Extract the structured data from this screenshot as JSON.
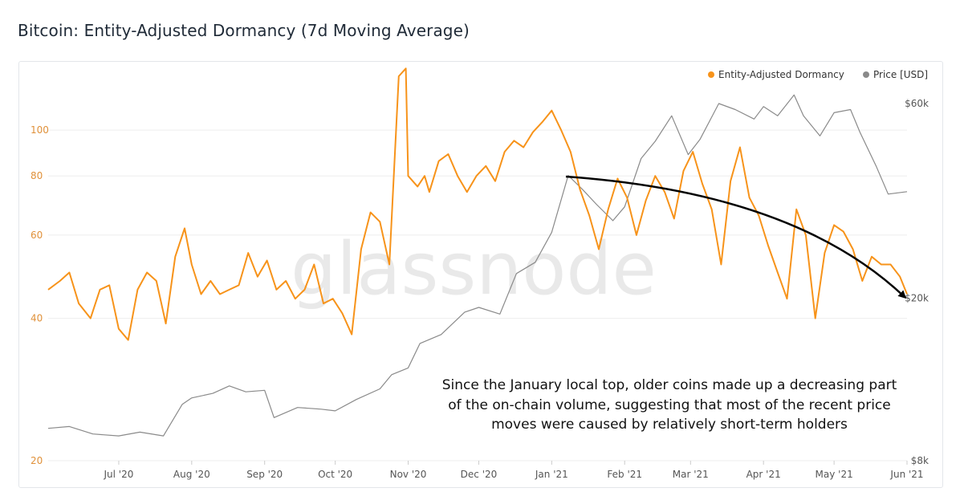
{
  "title": "Bitcoin: Entity-Adjusted Dormancy (7d Moving Average)",
  "watermark": "glassnode",
  "annotation": [
    "Since the January local top, older coins made up a decreasing part",
    "of the on-chain volume, suggesting that most of the recent price",
    "moves were caused by relatively short-term holders"
  ],
  "colors": {
    "dormancy": "#f7931a",
    "price": "#8a8a8a",
    "grid": "#eeeeee",
    "axis_left": "#e0913a",
    "axis_text": "#555555",
    "arrow": "#000000",
    "watermark": "#d9d9d9"
  },
  "chart_data": {
    "type": "line",
    "x_axis": {
      "type": "date",
      "range": [
        "2020-06-01",
        "2021-06-01"
      ],
      "ticks": [
        "Jul '20",
        "Aug '20",
        "Sep '20",
        "Oct '20",
        "Nov '20",
        "Dec '20",
        "Jan '21",
        "Feb '21",
        "Mar '21",
        "Apr '21",
        "May '21",
        "Jun '21"
      ],
      "tick_dates": [
        "2020-07-01",
        "2020-08-01",
        "2020-09-01",
        "2020-10-01",
        "2020-11-01",
        "2020-12-01",
        "2021-01-01",
        "2021-02-01",
        "2021-03-01",
        "2021-04-01",
        "2021-05-01",
        "2021-06-01"
      ]
    },
    "y_left": {
      "label": "",
      "scale": "log",
      "ticks": [
        20,
        40,
        60,
        80,
        100
      ],
      "range": [
        20,
        130
      ]
    },
    "y_right": {
      "label": "",
      "scale": "log",
      "ticks": [
        "$8k",
        "$20k",
        "$60k"
      ],
      "tick_values": [
        8000,
        20000,
        60000
      ],
      "range": [
        8000,
        70000
      ]
    },
    "legend": {
      "placement": "top-right",
      "items": [
        {
          "name": "Entity-Adjusted Dormancy",
          "color": "#f7931a"
        },
        {
          "name": "Price [USD]",
          "color": "#8a8a8a"
        }
      ]
    },
    "series": [
      {
        "name": "Entity-Adjusted Dormancy",
        "axis": "left",
        "x": [
          "2020-06-01",
          "2020-06-06",
          "2020-06-10",
          "2020-06-14",
          "2020-06-19",
          "2020-06-23",
          "2020-06-27",
          "2020-07-01",
          "2020-07-05",
          "2020-07-09",
          "2020-07-13",
          "2020-07-17",
          "2020-07-21",
          "2020-07-25",
          "2020-07-29",
          "2020-08-01",
          "2020-08-05",
          "2020-08-09",
          "2020-08-13",
          "2020-08-17",
          "2020-08-21",
          "2020-08-25",
          "2020-08-29",
          "2020-09-02",
          "2020-09-06",
          "2020-09-10",
          "2020-09-14",
          "2020-09-18",
          "2020-09-22",
          "2020-09-26",
          "2020-09-30",
          "2020-10-04",
          "2020-10-08",
          "2020-10-12",
          "2020-10-16",
          "2020-10-20",
          "2020-10-24",
          "2020-10-28",
          "2020-10-31",
          "2020-11-01",
          "2020-11-05",
          "2020-11-08",
          "2020-11-10",
          "2020-11-14",
          "2020-11-18",
          "2020-11-22",
          "2020-11-26",
          "2020-11-30",
          "2020-12-04",
          "2020-12-08",
          "2020-12-12",
          "2020-12-16",
          "2020-12-20",
          "2020-12-24",
          "2020-12-28",
          "2021-01-01",
          "2021-01-05",
          "2021-01-09",
          "2021-01-13",
          "2021-01-17",
          "2021-01-21",
          "2021-01-25",
          "2021-01-29",
          "2021-02-02",
          "2021-02-06",
          "2021-02-10",
          "2021-02-14",
          "2021-02-18",
          "2021-02-22",
          "2021-02-26",
          "2021-03-02",
          "2021-03-06",
          "2021-03-10",
          "2021-03-14",
          "2021-03-18",
          "2021-03-22",
          "2021-03-26",
          "2021-03-30",
          "2021-04-03",
          "2021-04-07",
          "2021-04-11",
          "2021-04-15",
          "2021-04-19",
          "2021-04-23",
          "2021-04-27",
          "2021-05-01",
          "2021-05-05",
          "2021-05-09",
          "2021-05-13",
          "2021-05-17",
          "2021-05-21",
          "2021-05-25",
          "2021-05-29",
          "2021-06-01"
        ],
        "values": [
          46,
          48,
          50,
          43,
          40,
          46,
          47,
          38,
          36,
          46,
          50,
          48,
          39,
          54,
          62,
          52,
          45,
          48,
          45,
          46,
          47,
          55,
          49,
          53,
          46,
          48,
          44,
          46,
          52,
          43,
          44,
          41,
          37,
          56,
          67,
          64,
          52,
          130,
          135,
          80,
          76,
          80,
          74,
          86,
          89,
          80,
          74,
          80,
          84,
          78,
          90,
          95,
          92,
          99,
          104,
          110,
          100,
          90,
          75,
          66,
          56,
          68,
          79,
          72,
          60,
          71,
          80,
          74,
          65,
          82,
          90,
          77,
          68,
          52,
          78,
          92,
          72,
          66,
          57,
          50,
          44,
          68,
          60,
          40,
          55,
          63,
          61,
          56,
          48,
          54,
          52,
          52,
          49,
          45
        ]
      },
      {
        "name": "Price [USD]",
        "axis": "right",
        "x": [
          "2020-06-01",
          "2020-06-10",
          "2020-06-20",
          "2020-07-01",
          "2020-07-10",
          "2020-07-20",
          "2020-07-28",
          "2020-08-01",
          "2020-08-10",
          "2020-08-17",
          "2020-08-24",
          "2020-09-01",
          "2020-09-05",
          "2020-09-15",
          "2020-09-25",
          "2020-10-01",
          "2020-10-10",
          "2020-10-20",
          "2020-10-25",
          "2020-11-01",
          "2020-11-06",
          "2020-11-15",
          "2020-11-25",
          "2020-12-01",
          "2020-12-10",
          "2020-12-17",
          "2020-12-25",
          "2021-01-01",
          "2021-01-08",
          "2021-01-14",
          "2021-01-20",
          "2021-01-27",
          "2021-02-01",
          "2021-02-08",
          "2021-02-14",
          "2021-02-21",
          "2021-02-28",
          "2021-03-05",
          "2021-03-13",
          "2021-03-20",
          "2021-03-28",
          "2021-04-01",
          "2021-04-07",
          "2021-04-14",
          "2021-04-18",
          "2021-04-25",
          "2021-05-01",
          "2021-05-08",
          "2021-05-12",
          "2021-05-19",
          "2021-05-24",
          "2021-06-01"
        ],
        "values": [
          9600,
          9700,
          9300,
          9200,
          9400,
          9200,
          11000,
          11400,
          11700,
          12200,
          11800,
          11900,
          10200,
          10800,
          10700,
          10600,
          11300,
          12000,
          13000,
          13500,
          15500,
          16300,
          18500,
          19000,
          18300,
          23000,
          24500,
          29000,
          40000,
          37000,
          34000,
          31000,
          33500,
          44000,
          48500,
          56000,
          45000,
          49000,
          60000,
          58000,
          55000,
          59000,
          56000,
          63000,
          56000,
          50000,
          57000,
          58000,
          51000,
          42000,
          36000,
          36500
        ]
      }
    ]
  }
}
